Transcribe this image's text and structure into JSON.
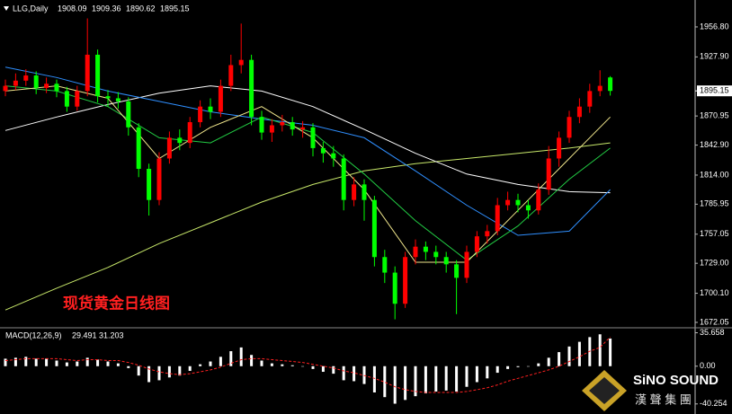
{
  "chart_data": [
    {
      "type": "candlestick",
      "symbol": "LLG,Daily",
      "header_ohlc": [
        1908.09,
        1909.36,
        1890.62,
        1895.15
      ],
      "title": "现货黄金日线图",
      "up_color": "#ff0000",
      "down_color": "#00ff00",
      "open": [
        1895,
        1900,
        1905,
        1910,
        1898,
        1902,
        1895,
        1880,
        1895,
        1930,
        1890,
        1888,
        1885,
        1860,
        1820,
        1790,
        1830,
        1850,
        1845,
        1865,
        1880,
        1875,
        1900,
        1920,
        1925,
        1870,
        1855,
        1862,
        1865,
        1858,
        1860,
        1840,
        1835,
        1830,
        1790,
        1805,
        1790,
        1735,
        1720,
        1690,
        1735,
        1745,
        1740,
        1735,
        1728,
        1715,
        1740,
        1755,
        1760,
        1785,
        1790,
        1785,
        1780,
        1800,
        1830,
        1850,
        1870,
        1880,
        1895,
        1908.09
      ],
      "high": [
        1906,
        1912,
        1916,
        1914,
        1908,
        1906,
        1899,
        1900,
        1965,
        1935,
        1896,
        1894,
        1889,
        1864,
        1825,
        1836,
        1856,
        1858,
        1870,
        1886,
        1888,
        1906,
        1930,
        1960,
        1930,
        1876,
        1868,
        1872,
        1870,
        1866,
        1864,
        1846,
        1842,
        1834,
        1812,
        1810,
        1794,
        1742,
        1726,
        1740,
        1752,
        1750,
        1746,
        1740,
        1732,
        1746,
        1760,
        1766,
        1792,
        1798,
        1796,
        1790,
        1806,
        1842,
        1856,
        1876,
        1888,
        1902,
        1915,
        1909.36
      ],
      "low": [
        1890,
        1896,
        1900,
        1892,
        1893,
        1889,
        1875,
        1876,
        1890,
        1884,
        1880,
        1878,
        1852,
        1812,
        1775,
        1785,
        1825,
        1838,
        1840,
        1860,
        1868,
        1870,
        1895,
        1912,
        1862,
        1848,
        1846,
        1856,
        1852,
        1850,
        1832,
        1826,
        1822,
        1780,
        1784,
        1770,
        1726,
        1710,
        1675,
        1686,
        1728,
        1732,
        1728,
        1720,
        1680,
        1710,
        1735,
        1748,
        1756,
        1780,
        1778,
        1772,
        1776,
        1795,
        1822,
        1845,
        1864,
        1874,
        1890,
        1890.62
      ],
      "close": [
        1900,
        1905,
        1910,
        1898,
        1902,
        1895,
        1880,
        1895,
        1930,
        1890,
        1888,
        1885,
        1860,
        1820,
        1790,
        1830,
        1850,
        1845,
        1865,
        1880,
        1875,
        1900,
        1920,
        1925,
        1870,
        1855,
        1862,
        1865,
        1858,
        1860,
        1840,
        1835,
        1830,
        1790,
        1805,
        1790,
        1735,
        1720,
        1690,
        1735,
        1745,
        1740,
        1735,
        1728,
        1715,
        1740,
        1755,
        1760,
        1785,
        1790,
        1785,
        1780,
        1800,
        1830,
        1850,
        1870,
        1880,
        1895,
        1900,
        1895.15
      ],
      "ma_lines": [
        {
          "color": "#c8e86a",
          "x": [
            0,
            5,
            10,
            15,
            20,
            25,
            30,
            35,
            40,
            45,
            50,
            55,
            59
          ],
          "values": [
            1684,
            1705,
            1725,
            1748,
            1768,
            1788,
            1805,
            1818,
            1825,
            1830,
            1835,
            1840,
            1845
          ]
        },
        {
          "color": "#ffffff",
          "x": [
            0,
            5,
            10,
            15,
            20,
            25,
            30,
            35,
            40,
            45,
            50,
            55,
            59
          ],
          "values": [
            1857,
            1870,
            1882,
            1893,
            1900,
            1895,
            1880,
            1858,
            1835,
            1815,
            1805,
            1798,
            1797
          ]
        },
        {
          "color": "#2f8fff",
          "x": [
            0,
            5,
            10,
            15,
            20,
            25,
            30,
            35,
            40,
            45,
            50,
            55,
            59
          ],
          "values": [
            1918,
            1908,
            1895,
            1885,
            1875,
            1868,
            1862,
            1850,
            1818,
            1785,
            1756,
            1760,
            1800
          ]
        },
        {
          "color": "#22cc44",
          "x": [
            0,
            5,
            10,
            15,
            20,
            25,
            30,
            35,
            40,
            45,
            50,
            55,
            59
          ],
          "values": [
            1900,
            1895,
            1880,
            1850,
            1845,
            1870,
            1855,
            1815,
            1770,
            1732,
            1765,
            1810,
            1840
          ]
        },
        {
          "color": "#f0e68c",
          "x": [
            0,
            5,
            10,
            15,
            20,
            25,
            30,
            35,
            40,
            45,
            50,
            55,
            59
          ],
          "values": [
            1895,
            1900,
            1888,
            1830,
            1860,
            1880,
            1850,
            1800,
            1730,
            1730,
            1780,
            1830,
            1870
          ]
        }
      ],
      "ylim": [
        1667.7,
        1981.0
      ],
      "yticks": [
        {
          "value": 1956.8,
          "label": "1956.80"
        },
        {
          "value": 1927.9,
          "label": "1927.90"
        },
        {
          "value": 1870.95,
          "label": "1870.95"
        },
        {
          "value": 1842.9,
          "label": "1842.90"
        },
        {
          "value": 1814.0,
          "label": "1814.00"
        },
        1785.95,
        1757.05,
        {
          "value": 1729.0,
          "label": "1729.00"
        },
        {
          "value": 1700.1,
          "label": "1700.10"
        },
        1672.05
      ]
    },
    {
      "type": "macd",
      "title": "MACD(12,26,9)",
      "last": [
        29.491,
        31.203
      ],
      "hist_color": "#ffffff",
      "signal_color": "#ff2020",
      "values": [
        8,
        9,
        10,
        8,
        8,
        6,
        4,
        5,
        9,
        7,
        5,
        3,
        -2,
        -10,
        -17,
        -15,
        -12,
        -10,
        -5,
        2,
        5,
        10,
        16,
        20,
        12,
        6,
        3,
        2,
        1,
        0,
        -3,
        -6,
        -8,
        -15,
        -16,
        -19,
        -28,
        -33,
        -40,
        -36,
        -32,
        -29,
        -27,
        -26,
        -27,
        -22,
        -17,
        -13,
        -7,
        -3,
        -1,
        0,
        3,
        9,
        15,
        21,
        26,
        31,
        34,
        29.491
      ],
      "signal": [
        6,
        7,
        8,
        8,
        8,
        8,
        7,
        6,
        7,
        7,
        6,
        6,
        4,
        1,
        -3,
        -6,
        -8,
        -9,
        -8,
        -6,
        -4,
        -1,
        3,
        7,
        8,
        8,
        7,
        6,
        5,
        4,
        2,
        0,
        -2,
        -5,
        -7,
        -10,
        -13,
        -17,
        -22,
        -25,
        -27,
        -28,
        -28,
        -28,
        -28,
        -27,
        -25,
        -23,
        -20,
        -16,
        -13,
        -10,
        -7,
        -4,
        0,
        5,
        10,
        16,
        20,
        31.203
      ],
      "ylim": [
        -51,
        40
      ],
      "yticks": [
        35.658,
        {
          "value": 0,
          "label": "0.00"
        },
        -40.254
      ]
    }
  ],
  "branding": {
    "name": "SiNO SOUND",
    "subtitle": "漢 聲 集 團"
  }
}
